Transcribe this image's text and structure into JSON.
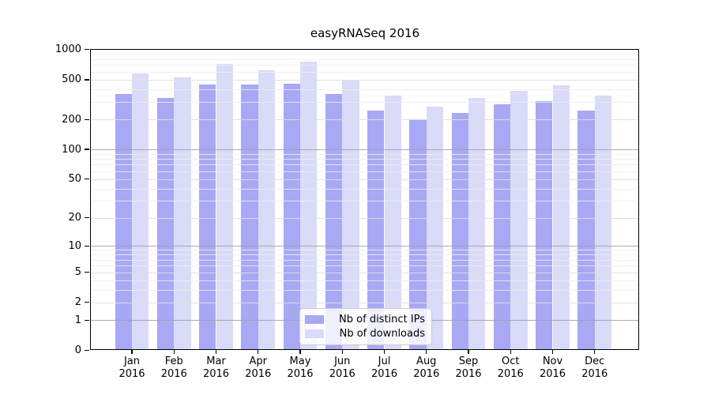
{
  "chart_data": {
    "type": "bar",
    "title": "easyRNASeq 2016",
    "categories": [
      "Jan",
      "Feb",
      "Mar",
      "Apr",
      "May",
      "Jun",
      "Jul",
      "Aug",
      "Sep",
      "Oct",
      "Nov",
      "Dec"
    ],
    "category_year": "2016",
    "series": [
      {
        "name": "Nb of distinct IPs",
        "color": "#a8a8f5",
        "values": [
          360,
          330,
          450,
          445,
          455,
          360,
          245,
          200,
          230,
          285,
          305,
          245
        ]
      },
      {
        "name": "Nb of downloads",
        "color": "#dadaf9",
        "values": [
          580,
          525,
          720,
          620,
          760,
          500,
          345,
          270,
          330,
          385,
          435,
          345
        ]
      }
    ],
    "yticks": [
      0,
      1,
      2,
      5,
      10,
      20,
      50,
      100,
      200,
      500,
      1000
    ],
    "ylim": [
      0,
      1000
    ],
    "y_scale": "log10(value+1)",
    "grid": true,
    "legend_position": "lower center",
    "colors": {
      "grid_minor": "rgba(237,237,237,0.85)",
      "grid_major": "rgba(222,222,222,0.9)",
      "grid_strong": "rgba(158,158,162,0.85)",
      "frame": "#000000",
      "background": "#ffffff"
    }
  }
}
